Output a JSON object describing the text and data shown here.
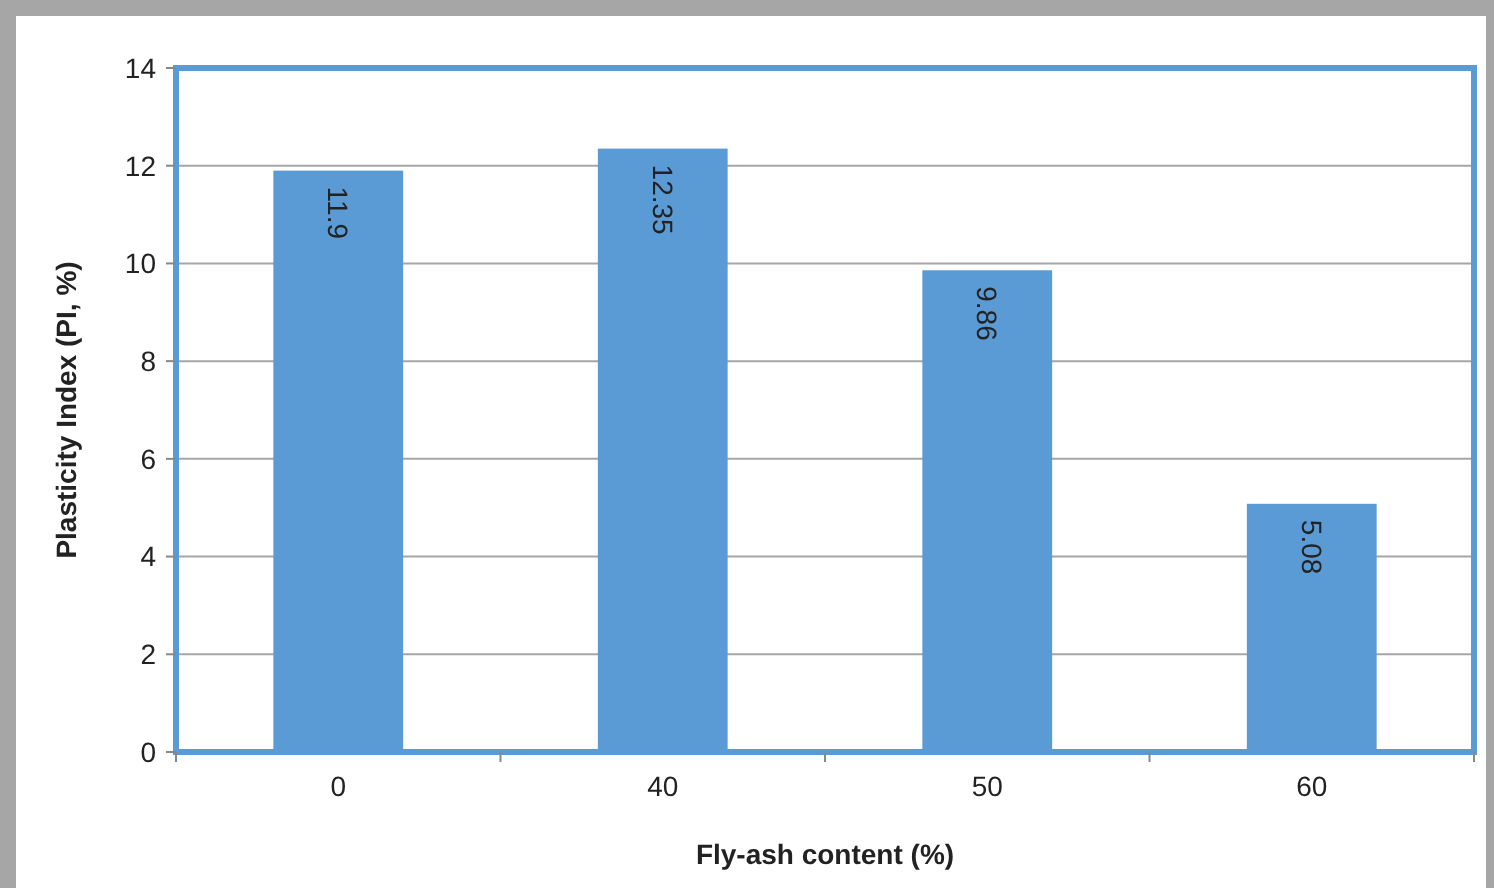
{
  "chart_data": {
    "type": "bar",
    "xlabel": "Fly-ash content (%)",
    "ylabel": "Plasticity Index (PI, %)",
    "categories": [
      "0",
      "40",
      "50",
      "60"
    ],
    "values": [
      11.9,
      12.35,
      9.86,
      5.08
    ],
    "color": "#5b9bd5",
    "ylim": [
      0,
      14
    ],
    "yticks": [
      0,
      2,
      4,
      6,
      8,
      10,
      12,
      14
    ],
    "grid": "y",
    "data_labels": true
  }
}
